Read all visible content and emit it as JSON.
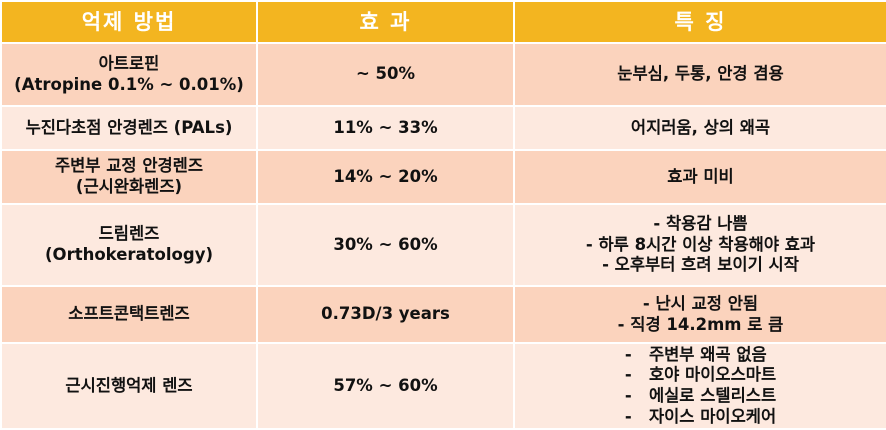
{
  "headers": [
    "억제 방법",
    "효 과",
    "특 징"
  ],
  "rows": [
    {
      "method": [
        "아트로핀",
        "(Atropine 0.1% ~ 0.01%)"
      ],
      "effect": "~ 50%",
      "features": [
        "눈부심, 두통, 안경 겸용"
      ]
    },
    {
      "method": [
        "누진다초점 안경렌즈 (PALs)"
      ],
      "effect": "11% ~ 33%",
      "features": [
        "어지러움, 상의 왜곡"
      ]
    },
    {
      "method": [
        "주변부 교정 안경렌즈",
        "(근시완화렌즈)"
      ],
      "effect": "14% ~ 20%",
      "features": [
        "효과 미비"
      ]
    },
    {
      "method": [
        "드림렌즈",
        "(Orthokeratology)"
      ],
      "effect": "30% ~ 60%",
      "features": [
        "- 착용감 나쁨",
        "- 하루 8시간 이상 착용해야 효과",
        "- 오후부터 흐려 보이기 시작"
      ]
    },
    {
      "method": [
        "소프트콘택트렌즈"
      ],
      "effect": "0.73D/3 years",
      "features": [
        "- 난시 교정 안됨",
        "- 직경 14.2mm 로 큼"
      ]
    },
    {
      "method": [
        "근시진행억제 렌즈"
      ],
      "effect": "57% ~ 60%",
      "features": [
        "-   주변부 왜곡 없음",
        "-   호야 마이오스마트",
        "-   에실로 스텔리스트",
        "-   자이스 마이오케어"
      ]
    }
  ]
}
